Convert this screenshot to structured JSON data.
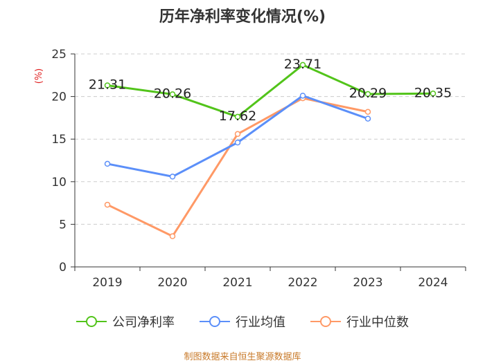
{
  "chart_data": {
    "type": "line",
    "title": "历年净利率变化情况(%)",
    "ylabel": "(%)",
    "xlabel": "",
    "categories": [
      "2019",
      "2020",
      "2021",
      "2022",
      "2023",
      "2024"
    ],
    "ylim": [
      0,
      25
    ],
    "yticks": [
      0,
      5,
      10,
      15,
      20,
      25
    ],
    "grid": true,
    "legend_position": "bottom",
    "series": [
      {
        "name": "公司净利率",
        "color": "#52c41a",
        "values": [
          21.31,
          20.26,
          17.62,
          23.71,
          20.29,
          20.35
        ],
        "labels": [
          "21.31",
          "20.26",
          "17.62",
          "23.71",
          "20.29",
          "20.35"
        ]
      },
      {
        "name": "行业均值",
        "color": "#5b8ff9",
        "values": [
          12.1,
          10.6,
          14.6,
          20.1,
          17.4,
          null
        ]
      },
      {
        "name": "行业中位数",
        "color": "#ff9966",
        "values": [
          7.3,
          3.6,
          15.6,
          19.8,
          18.2,
          null
        ]
      }
    ],
    "source": "制图数据来自恒生聚源数据库"
  }
}
